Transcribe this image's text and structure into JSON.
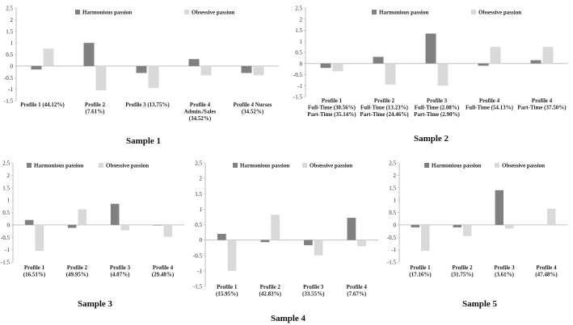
{
  "colors": {
    "harmonious": "#808080",
    "obsessive": "#d9d9d9",
    "axis": "#bfbfbf",
    "text": "#222222"
  },
  "chart_data": [
    {
      "type": "bar",
      "title": "Sample 1",
      "ylim": [
        -1.5,
        2.5
      ],
      "yticks": [
        "2.5",
        "2",
        "1.5",
        "1",
        "0.5",
        "0",
        "-0.5",
        "-1",
        "-1.5"
      ],
      "legend": [
        "Harmonious passion",
        "Obsessive passion"
      ],
      "categories": [
        [
          "Profile 1 (44.12%)"
        ],
        [
          "Profile 2",
          "(7.61%)"
        ],
        [
          "Profile 3 (13.75%)"
        ],
        [
          "Profile 4",
          "Admin./Sales",
          "(34.52%)"
        ],
        [
          "Profile 4 Nurses",
          "(34.52%)"
        ]
      ],
      "series": [
        {
          "name": "Harmonious passion",
          "values": [
            -0.15,
            1.0,
            -0.3,
            0.3,
            -0.3
          ]
        },
        {
          "name": "Obsessive passion",
          "values": [
            0.75,
            -1.05,
            -0.95,
            -0.4,
            -0.4
          ]
        }
      ]
    },
    {
      "type": "bar",
      "title": "Sample 2",
      "ylim": [
        -1.5,
        2.5
      ],
      "yticks": [
        "2.5",
        "2",
        "1.5",
        "1",
        "0.5",
        "0",
        "-0.5",
        "-1",
        "-1.5"
      ],
      "legend": [
        "Harmonious passion",
        "Obsessive passion"
      ],
      "categories": [
        [
          "Profile 1",
          "Full-Time (30.56%)",
          "Part-Time (35.14%)"
        ],
        [
          "Profile 2",
          "Full-Time (13.23%)",
          "Part-Time (24.46%)"
        ],
        [
          "Profile 3",
          "Full-Time (2.08%)",
          "Part-Time (2.90%)"
        ],
        [
          "Profile 4",
          "Full-Time (54.13%)"
        ],
        [
          "Profile 4",
          "Part-Time (37.50%)"
        ]
      ],
      "series": [
        {
          "name": "Harmonious passion",
          "values": [
            -0.2,
            0.3,
            1.35,
            -0.1,
            0.15
          ]
        },
        {
          "name": "Obsessive passion",
          "values": [
            -0.35,
            -0.95,
            -1.0,
            0.75,
            0.75
          ]
        }
      ]
    },
    {
      "type": "bar",
      "title": "Sample 3",
      "ylim": [
        -1.5,
        2.5
      ],
      "yticks": [
        "2.5",
        "2",
        "1.5",
        "1",
        "0.5",
        "0",
        "-0.5",
        "-1",
        "-1.5"
      ],
      "legend": [
        "Harmonious passion",
        "Obsessive passion"
      ],
      "categories": [
        [
          "Profile 1",
          "(16.51%)"
        ],
        [
          "Profile 2",
          "(49.95%)"
        ],
        [
          "Profile 3",
          "(4.07%)"
        ],
        [
          "Profile 4",
          "(29.48%)"
        ]
      ],
      "series": [
        {
          "name": "Harmonious passion",
          "values": [
            0.2,
            -0.12,
            0.85,
            -0.02
          ]
        },
        {
          "name": "Obsessive passion",
          "values": [
            -1.05,
            0.63,
            -0.22,
            -0.48
          ]
        }
      ]
    },
    {
      "type": "bar",
      "title": "Sample 4",
      "ylim": [
        -1.5,
        2.5
      ],
      "yticks": [
        "2.5",
        "2",
        "1.5",
        "1",
        "0.5",
        "0",
        "-0.5",
        "-1",
        "-1.5"
      ],
      "legend": [
        "Harmonious passion",
        "Obsessive passion"
      ],
      "categories": [
        [
          "Profile 1",
          "(15.95%)"
        ],
        [
          "Profile 2",
          "(42.83%)"
        ],
        [
          "Profile 3",
          "(33.55%)"
        ],
        [
          "Profile 4",
          "(7.67%)"
        ]
      ],
      "series": [
        {
          "name": "Harmonious passion",
          "values": [
            0.2,
            -0.07,
            -0.17,
            0.72
          ]
        },
        {
          "name": "Obsessive passion",
          "values": [
            -1.0,
            0.82,
            -0.5,
            -0.2
          ]
        }
      ]
    },
    {
      "type": "bar",
      "title": "Sample 5",
      "ylim": [
        -1.5,
        2.5
      ],
      "yticks": [
        "2.5",
        "2",
        "1.5",
        "1",
        "0.5",
        "0",
        "-0.5",
        "-1",
        "-1.5"
      ],
      "legend": [
        "Harmonious passion",
        "Obsessive passion"
      ],
      "categories": [
        [
          "Profile 1",
          "(17.16%)"
        ],
        [
          "Profile 2",
          "(31.75%)"
        ],
        [
          "Profile 3",
          "(3.61%)"
        ],
        [
          "Profile 4",
          "(47.48%)"
        ]
      ],
      "series": [
        {
          "name": "Harmonious passion",
          "values": [
            -0.1,
            -0.1,
            1.4,
            0.0
          ]
        },
        {
          "name": "Obsessive passion",
          "values": [
            -1.05,
            -0.45,
            -0.15,
            0.65
          ]
        }
      ]
    }
  ]
}
